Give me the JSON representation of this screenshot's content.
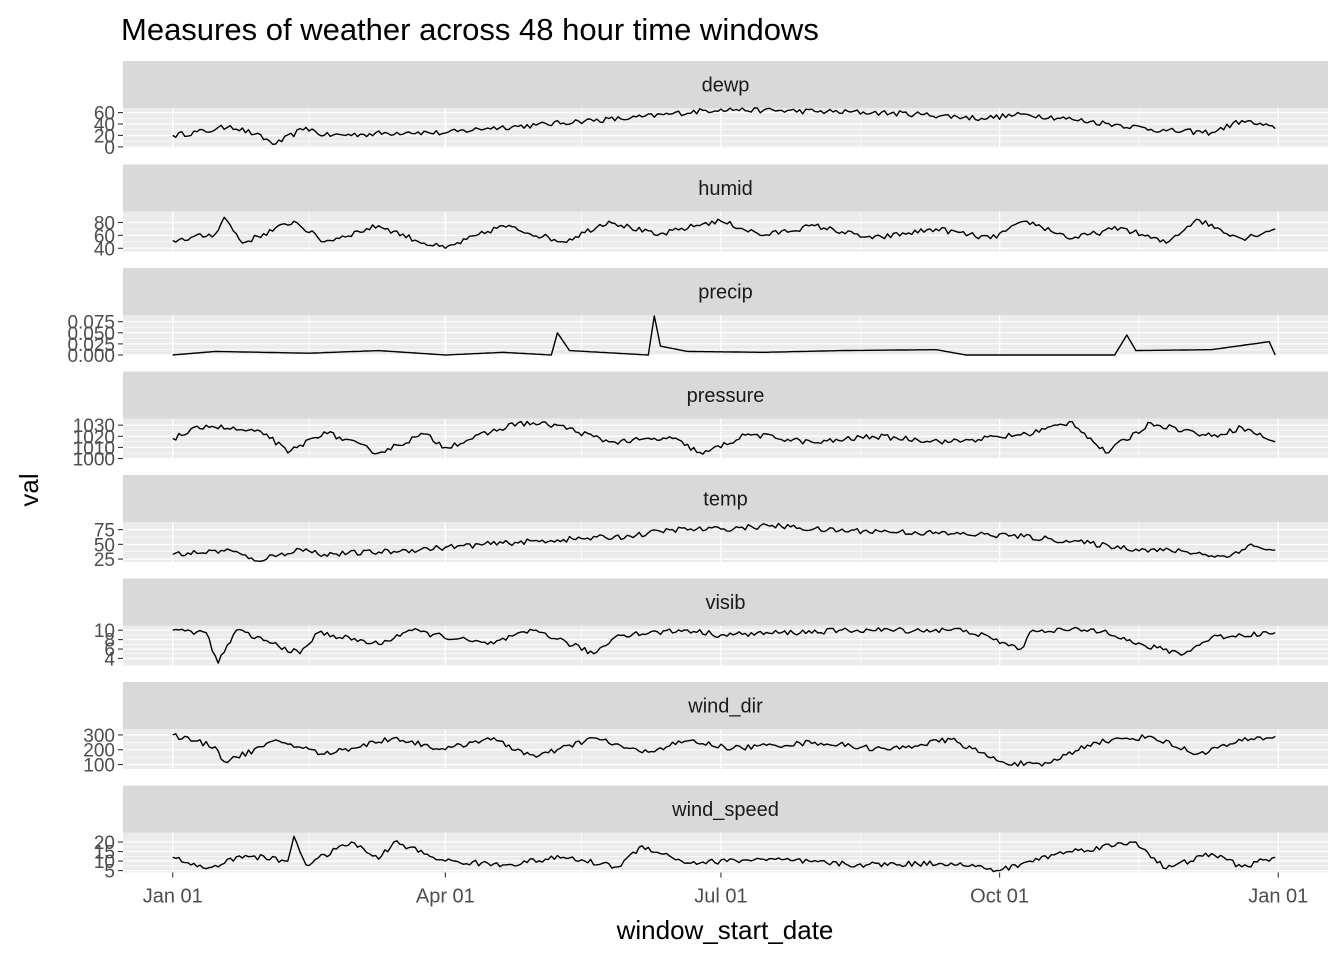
{
  "chart_data": {
    "type": "line",
    "title": "Measures of weather across 48 hour time windows",
    "xlabel": "window_start_date",
    "ylabel": "val",
    "x_ticks": [
      "Jan 01",
      "Apr 01",
      "Jul 01",
      "Oct 01",
      "Jan 01"
    ],
    "x_range": [
      "2013-01-01",
      "2014-01-01"
    ],
    "grid": true,
    "facets": "vertical, one panel per variable, free y scales",
    "panels": [
      {
        "name": "dewp",
        "ylim": [
          -2,
          68
        ],
        "y_ticks": [
          0,
          20,
          40,
          60
        ],
        "y_tick_labels": [
          "0",
          "20",
          "40",
          "60"
        ],
        "series": [
          {
            "x": "2013-01-01",
            "y": 20
          },
          {
            "x": "2013-01-15",
            "y": 30
          },
          {
            "x": "2013-01-20",
            "y": 37
          },
          {
            "x": "2013-01-28",
            "y": 22
          },
          {
            "x": "2013-02-04",
            "y": 5
          },
          {
            "x": "2013-02-14",
            "y": 34
          },
          {
            "x": "2013-02-20",
            "y": 20
          },
          {
            "x": "2013-03-05",
            "y": 22
          },
          {
            "x": "2013-03-20",
            "y": 26
          },
          {
            "x": "2013-04-01",
            "y": 24
          },
          {
            "x": "2013-04-15",
            "y": 33
          },
          {
            "x": "2013-05-01",
            "y": 38
          },
          {
            "x": "2013-05-15",
            "y": 45
          },
          {
            "x": "2013-06-01",
            "y": 50
          },
          {
            "x": "2013-06-15",
            "y": 58
          },
          {
            "x": "2013-07-01",
            "y": 66
          },
          {
            "x": "2013-07-15",
            "y": 64
          },
          {
            "x": "2013-08-01",
            "y": 62
          },
          {
            "x": "2013-08-20",
            "y": 60
          },
          {
            "x": "2013-09-05",
            "y": 57
          },
          {
            "x": "2013-09-25",
            "y": 50
          },
          {
            "x": "2013-10-10",
            "y": 57
          },
          {
            "x": "2013-10-25",
            "y": 48
          },
          {
            "x": "2013-11-10",
            "y": 38
          },
          {
            "x": "2013-11-25",
            "y": 28
          },
          {
            "x": "2013-12-10",
            "y": 25
          },
          {
            "x": "2013-12-20",
            "y": 46
          },
          {
            "x": "2013-12-31",
            "y": 32
          }
        ]
      },
      {
        "name": "humid",
        "ylim": [
          35,
          97
        ],
        "y_ticks": [
          40,
          60,
          80
        ],
        "y_tick_labels": [
          "40",
          "60",
          "80"
        ],
        "series": [
          {
            "x": "2013-01-01",
            "y": 52
          },
          {
            "x": "2013-01-15",
            "y": 62
          },
          {
            "x": "2013-01-18",
            "y": 88
          },
          {
            "x": "2013-01-24",
            "y": 48
          },
          {
            "x": "2013-02-10",
            "y": 82
          },
          {
            "x": "2013-02-20",
            "y": 50
          },
          {
            "x": "2013-03-10",
            "y": 75
          },
          {
            "x": "2013-03-25",
            "y": 48
          },
          {
            "x": "2013-04-01",
            "y": 40
          },
          {
            "x": "2013-04-20",
            "y": 75
          },
          {
            "x": "2013-05-10",
            "y": 50
          },
          {
            "x": "2013-05-25",
            "y": 82
          },
          {
            "x": "2013-06-10",
            "y": 60
          },
          {
            "x": "2013-06-25",
            "y": 78
          },
          {
            "x": "2013-07-01",
            "y": 82
          },
          {
            "x": "2013-07-15",
            "y": 60
          },
          {
            "x": "2013-08-01",
            "y": 75
          },
          {
            "x": "2013-08-20",
            "y": 55
          },
          {
            "x": "2013-09-10",
            "y": 70
          },
          {
            "x": "2013-09-28",
            "y": 55
          },
          {
            "x": "2013-10-10",
            "y": 82
          },
          {
            "x": "2013-10-25",
            "y": 55
          },
          {
            "x": "2013-11-10",
            "y": 72
          },
          {
            "x": "2013-11-25",
            "y": 48
          },
          {
            "x": "2013-12-05",
            "y": 85
          },
          {
            "x": "2013-12-20",
            "y": 55
          },
          {
            "x": "2013-12-31",
            "y": 70
          }
        ]
      },
      {
        "name": "precip",
        "ylim": [
          0,
          0.09
        ],
        "y_ticks": [
          0.0,
          0.025,
          0.05,
          0.075
        ],
        "y_tick_labels": [
          "0.000",
          "0.025",
          "0.050",
          "0.075"
        ],
        "series": [
          {
            "x": "2013-01-01",
            "y": 0.0
          },
          {
            "x": "2013-01-15",
            "y": 0.008
          },
          {
            "x": "2013-02-15",
            "y": 0.004
          },
          {
            "x": "2013-03-10",
            "y": 0.01
          },
          {
            "x": "2013-04-01",
            "y": 0.0
          },
          {
            "x": "2013-04-20",
            "y": 0.006
          },
          {
            "x": "2013-05-06",
            "y": 0.0
          },
          {
            "x": "2013-05-08",
            "y": 0.05
          },
          {
            "x": "2013-05-12",
            "y": 0.01
          },
          {
            "x": "2013-06-07",
            "y": 0.0
          },
          {
            "x": "2013-06-09",
            "y": 0.088
          },
          {
            "x": "2013-06-11",
            "y": 0.02
          },
          {
            "x": "2013-06-20",
            "y": 0.008
          },
          {
            "x": "2013-07-15",
            "y": 0.006
          },
          {
            "x": "2013-08-10",
            "y": 0.01
          },
          {
            "x": "2013-09-10",
            "y": 0.012
          },
          {
            "x": "2013-09-20",
            "y": 0.0
          },
          {
            "x": "2013-11-08",
            "y": 0.0
          },
          {
            "x": "2013-11-12",
            "y": 0.045
          },
          {
            "x": "2013-11-15",
            "y": 0.01
          },
          {
            "x": "2013-12-10",
            "y": 0.012
          },
          {
            "x": "2013-12-29",
            "y": 0.03
          },
          {
            "x": "2013-12-31",
            "y": 0.0
          }
        ]
      },
      {
        "name": "pressure",
        "ylim": [
          1000,
          1036
        ],
        "y_ticks": [
          1000,
          1010,
          1020,
          1030
        ],
        "y_tick_labels": [
          "1000",
          "1010",
          "1020",
          "1030"
        ],
        "series": [
          {
            "x": "2013-01-01",
            "y": 1018
          },
          {
            "x": "2013-01-12",
            "y": 1030
          },
          {
            "x": "2013-02-01",
            "y": 1022
          },
          {
            "x": "2013-02-08",
            "y": 1005
          },
          {
            "x": "2013-02-20",
            "y": 1024
          },
          {
            "x": "2013-03-10",
            "y": 1005
          },
          {
            "x": "2013-03-25",
            "y": 1022
          },
          {
            "x": "2013-04-01",
            "y": 1010
          },
          {
            "x": "2013-04-25",
            "y": 1032
          },
          {
            "x": "2013-05-08",
            "y": 1030
          },
          {
            "x": "2013-05-25",
            "y": 1015
          },
          {
            "x": "2013-06-15",
            "y": 1018
          },
          {
            "x": "2013-06-25",
            "y": 1004
          },
          {
            "x": "2013-07-10",
            "y": 1022
          },
          {
            "x": "2013-08-01",
            "y": 1014
          },
          {
            "x": "2013-08-20",
            "y": 1020
          },
          {
            "x": "2013-09-15",
            "y": 1015
          },
          {
            "x": "2013-10-10",
            "y": 1022
          },
          {
            "x": "2013-10-25",
            "y": 1033
          },
          {
            "x": "2013-11-05",
            "y": 1005
          },
          {
            "x": "2013-11-20",
            "y": 1032
          },
          {
            "x": "2013-12-10",
            "y": 1020
          },
          {
            "x": "2013-12-20",
            "y": 1028
          },
          {
            "x": "2013-12-31",
            "y": 1015
          }
        ]
      },
      {
        "name": "temp",
        "ylim": [
          20,
          88
        ],
        "y_ticks": [
          25,
          50,
          75
        ],
        "y_tick_labels": [
          "25",
          "50",
          "75"
        ],
        "series": [
          {
            "x": "2013-01-01",
            "y": 33
          },
          {
            "x": "2013-01-20",
            "y": 40
          },
          {
            "x": "2013-01-28",
            "y": 22
          },
          {
            "x": "2013-02-05",
            "y": 32
          },
          {
            "x": "2013-02-12",
            "y": 42
          },
          {
            "x": "2013-02-20",
            "y": 33
          },
          {
            "x": "2013-03-15",
            "y": 38
          },
          {
            "x": "2013-04-01",
            "y": 45
          },
          {
            "x": "2013-04-20",
            "y": 52
          },
          {
            "x": "2013-05-10",
            "y": 58
          },
          {
            "x": "2013-06-01",
            "y": 64
          },
          {
            "x": "2013-06-15",
            "y": 75
          },
          {
            "x": "2013-07-01",
            "y": 76
          },
          {
            "x": "2013-07-18",
            "y": 82
          },
          {
            "x": "2013-08-05",
            "y": 74
          },
          {
            "x": "2013-08-25",
            "y": 72
          },
          {
            "x": "2013-09-15",
            "y": 68
          },
          {
            "x": "2013-10-05",
            "y": 65
          },
          {
            "x": "2013-10-25",
            "y": 55
          },
          {
            "x": "2013-11-15",
            "y": 42
          },
          {
            "x": "2013-12-01",
            "y": 38
          },
          {
            "x": "2013-12-15",
            "y": 28
          },
          {
            "x": "2013-12-22",
            "y": 48
          },
          {
            "x": "2013-12-31",
            "y": 40
          }
        ]
      },
      {
        "name": "visib",
        "ylim": [
          2.5,
          11
        ],
        "y_ticks": [
          4,
          6,
          8,
          10
        ],
        "y_tick_labels": [
          "4",
          "6",
          "8",
          "10"
        ],
        "series": [
          {
            "x": "2013-01-01",
            "y": 10
          },
          {
            "x": "2013-01-12",
            "y": 9.5
          },
          {
            "x": "2013-01-16",
            "y": 3
          },
          {
            "x": "2013-01-22",
            "y": 10
          },
          {
            "x": "2013-02-12",
            "y": 5
          },
          {
            "x": "2013-02-18",
            "y": 9.5
          },
          {
            "x": "2013-03-10",
            "y": 7
          },
          {
            "x": "2013-03-20",
            "y": 10
          },
          {
            "x": "2013-04-15",
            "y": 7
          },
          {
            "x": "2013-05-01",
            "y": 10
          },
          {
            "x": "2013-05-20",
            "y": 5
          },
          {
            "x": "2013-05-28",
            "y": 9
          },
          {
            "x": "2013-06-20",
            "y": 10
          },
          {
            "x": "2013-07-01",
            "y": 9
          },
          {
            "x": "2013-08-15",
            "y": 10
          },
          {
            "x": "2013-09-20",
            "y": 10
          },
          {
            "x": "2013-10-08",
            "y": 6
          },
          {
            "x": "2013-10-12",
            "y": 10
          },
          {
            "x": "2013-11-05",
            "y": 10
          },
          {
            "x": "2013-11-15",
            "y": 7
          },
          {
            "x": "2013-12-01",
            "y": 5
          },
          {
            "x": "2013-12-10",
            "y": 8.5
          },
          {
            "x": "2013-12-31",
            "y": 9.5
          }
        ]
      },
      {
        "name": "wind_dir",
        "ylim": [
          70,
          340
        ],
        "y_ticks": [
          100,
          200,
          300
        ],
        "y_tick_labels": [
          "100",
          "200",
          "300"
        ],
        "series": [
          {
            "x": "2013-01-01",
            "y": 300
          },
          {
            "x": "2013-01-15",
            "y": 220
          },
          {
            "x": "2013-01-18",
            "y": 120
          },
          {
            "x": "2013-02-05",
            "y": 260
          },
          {
            "x": "2013-02-20",
            "y": 170
          },
          {
            "x": "2013-03-15",
            "y": 280
          },
          {
            "x": "2013-04-01",
            "y": 200
          },
          {
            "x": "2013-04-15",
            "y": 280
          },
          {
            "x": "2013-05-01",
            "y": 150
          },
          {
            "x": "2013-05-20",
            "y": 280
          },
          {
            "x": "2013-06-05",
            "y": 180
          },
          {
            "x": "2013-06-20",
            "y": 260
          },
          {
            "x": "2013-07-05",
            "y": 210
          },
          {
            "x": "2013-08-01",
            "y": 250
          },
          {
            "x": "2013-08-25",
            "y": 200
          },
          {
            "x": "2013-09-15",
            "y": 270
          },
          {
            "x": "2013-10-01",
            "y": 120
          },
          {
            "x": "2013-10-15",
            "y": 90
          },
          {
            "x": "2013-11-01",
            "y": 250
          },
          {
            "x": "2013-11-20",
            "y": 290
          },
          {
            "x": "2013-12-05",
            "y": 170
          },
          {
            "x": "2013-12-20",
            "y": 260
          },
          {
            "x": "2013-12-31",
            "y": 290
          }
        ]
      },
      {
        "name": "wind_speed",
        "ylim": [
          4,
          25
        ],
        "y_ticks": [
          5,
          10,
          15,
          20
        ],
        "y_tick_labels": [
          "5",
          "10",
          "15",
          "20"
        ],
        "series": [
          {
            "x": "2013-01-01",
            "y": 12
          },
          {
            "x": "2013-01-12",
            "y": 6
          },
          {
            "x": "2013-01-25",
            "y": 13
          },
          {
            "x": "2013-02-08",
            "y": 10
          },
          {
            "x": "2013-02-10",
            "y": 23
          },
          {
            "x": "2013-02-14",
            "y": 8
          },
          {
            "x": "2013-03-01",
            "y": 20
          },
          {
            "x": "2013-03-10",
            "y": 11
          },
          {
            "x": "2013-03-15",
            "y": 20
          },
          {
            "x": "2013-04-01",
            "y": 10
          },
          {
            "x": "2013-04-20",
            "y": 8
          },
          {
            "x": "2013-05-10",
            "y": 12
          },
          {
            "x": "2013-05-28",
            "y": 7
          },
          {
            "x": "2013-06-05",
            "y": 18
          },
          {
            "x": "2013-06-20",
            "y": 9
          },
          {
            "x": "2013-07-15",
            "y": 11
          },
          {
            "x": "2013-08-15",
            "y": 8
          },
          {
            "x": "2013-09-15",
            "y": 9
          },
          {
            "x": "2013-10-01",
            "y": 5
          },
          {
            "x": "2013-10-20",
            "y": 14
          },
          {
            "x": "2013-11-15",
            "y": 20
          },
          {
            "x": "2013-11-25",
            "y": 6
          },
          {
            "x": "2013-12-10",
            "y": 14
          },
          {
            "x": "2013-12-20",
            "y": 7
          },
          {
            "x": "2013-12-31",
            "y": 12
          }
        ]
      }
    ]
  }
}
